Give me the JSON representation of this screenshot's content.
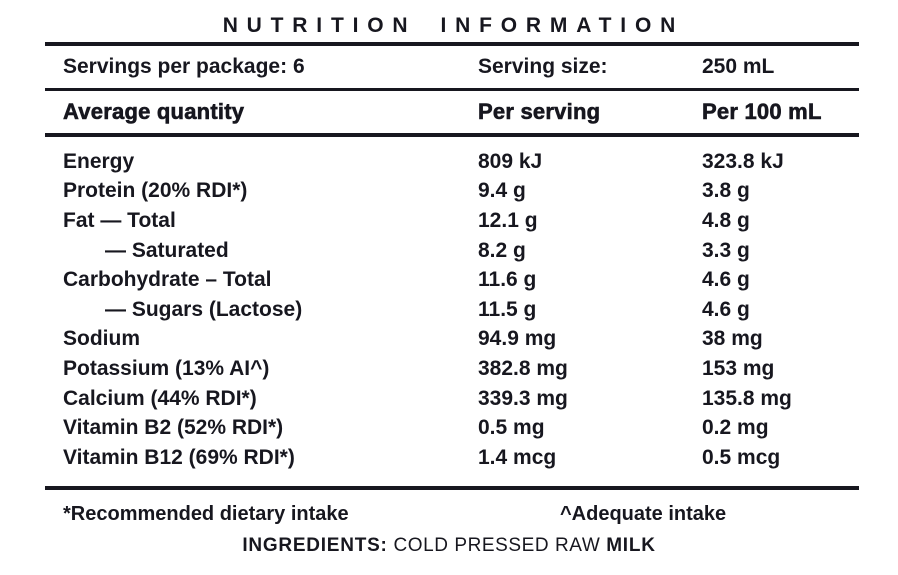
{
  "title": "NUTRITION INFORMATION",
  "serving_info": {
    "servings_label": "Servings per package:",
    "servings_value": "6",
    "serving_size_label": "Serving size:",
    "serving_size_value": "250 mL"
  },
  "table": {
    "columns": [
      "Average quantity",
      "Per serving",
      "Per 100 mL"
    ],
    "rows": [
      {
        "label": "Energy",
        "indent": false,
        "per_serving": "809 kJ",
        "per_100ml": "323.8 kJ"
      },
      {
        "label": "Protein (20% RDI*)",
        "indent": false,
        "per_serving": "9.4 g",
        "per_100ml": "3.8 g"
      },
      {
        "label": "Fat — Total",
        "indent": false,
        "per_serving": "12.1 g",
        "per_100ml": "4.8 g"
      },
      {
        "label": "— Saturated",
        "indent": true,
        "per_serving": "8.2 g",
        "per_100ml": "3.3 g"
      },
      {
        "label": "Carbohydrate – Total",
        "indent": false,
        "per_serving": "11.6 g",
        "per_100ml": "4.6 g"
      },
      {
        "label": "— Sugars (Lactose)",
        "indent": true,
        "per_serving": "11.5 g",
        "per_100ml": "4.6 g"
      },
      {
        "label": "Sodium",
        "indent": false,
        "per_serving": "94.9 mg",
        "per_100ml": "38 mg"
      },
      {
        "label": "Potassium (13% AI^)",
        "indent": false,
        "per_serving": "382.8 mg",
        "per_100ml": "153 mg"
      },
      {
        "label": "Calcium (44% RDI*)",
        "indent": false,
        "per_serving": "339.3 mg",
        "per_100ml": "135.8 mg"
      },
      {
        "label": "Vitamin B2 (52% RDI*)",
        "indent": false,
        "per_serving": "0.5 mg",
        "per_100ml": "0.2 mg"
      },
      {
        "label": "Vitamin B12 (69% RDI*)",
        "indent": false,
        "per_serving": "1.4 mcg",
        "per_100ml": "0.5 mcg"
      }
    ]
  },
  "footnotes": {
    "rdi": "*Recommended dietary intake",
    "ai": "^Adequate intake"
  },
  "ingredients": {
    "label": "INGREDIENTS:",
    "value": " COLD PRESSED RAW ",
    "highlight": "MILK"
  },
  "colors": {
    "text": "#17171F",
    "background": "#FFFFFF"
  }
}
